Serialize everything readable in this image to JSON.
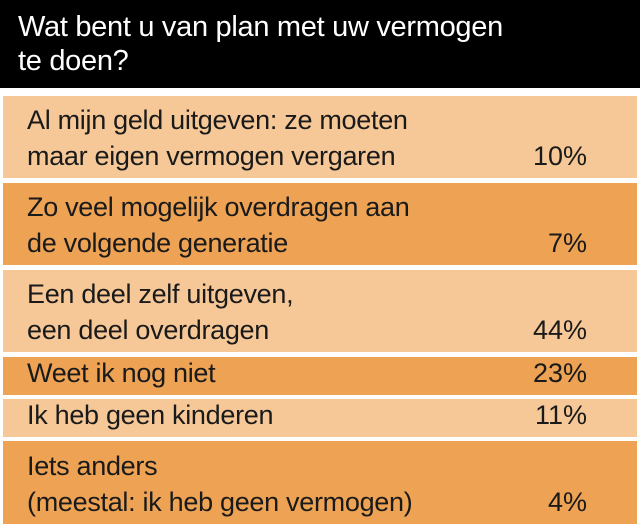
{
  "chart_data": {
    "type": "table",
    "title": "Wat bent u van plan met uw vermogen\nte doen?",
    "rows": [
      {
        "label": "Al mijn geld uitgeven: ze moeten\nmaar eigen vermogen vergaren",
        "value": 10,
        "display": "10%"
      },
      {
        "label": "Zo veel mogelijk overdragen aan\nde volgende generatie",
        "value": 7,
        "display": "7%"
      },
      {
        "label": "Een deel zelf uitgeven,\neen deel overdragen",
        "value": 44,
        "display": "44%"
      },
      {
        "label": "Weet ik nog niet",
        "value": 23,
        "display": "23%"
      },
      {
        "label": "Ik heb geen kinderen",
        "value": 11,
        "display": "11%"
      },
      {
        "label": "Iets anders\n(meestal: ik heb geen vermogen)",
        "value": 4,
        "display": "4%"
      }
    ]
  },
  "colors": {
    "header_bg": "#000000",
    "header_text": "#ffffff",
    "row_light": "#f6c897",
    "row_dark": "#eda254",
    "text": "#1a1a1a"
  }
}
